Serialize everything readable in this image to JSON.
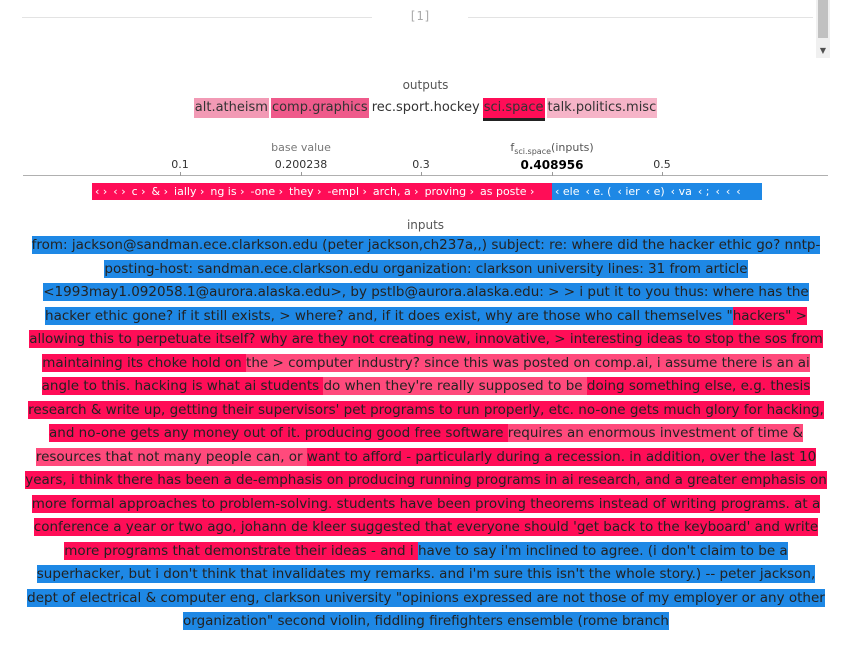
{
  "header": {
    "index_label": "[1]"
  },
  "outputs": {
    "title": "outputs",
    "items": [
      {
        "label": "alt.atheism",
        "color": "#f29ab5",
        "selected": false
      },
      {
        "label": "comp.graphics",
        "color": "#ef5a8b",
        "selected": false
      },
      {
        "label": "rec.sport.hockey",
        "color": "#ffffff",
        "selected": false
      },
      {
        "label": "sci.space",
        "color": "#ff0d57",
        "selected": true
      },
      {
        "label": "talk.politics.misc",
        "color": "#f6b4c8",
        "selected": false
      }
    ]
  },
  "force_plot": {
    "base_value_label": "base value",
    "base_value": "0.200238",
    "f_label_prefix": "f",
    "f_label_sub": "sci.space",
    "f_label_suffix": "(inputs)",
    "f_value": "0.408956",
    "ticks": [
      "0.1",
      "0.200238",
      "0.3",
      "0.408956",
      "0.5"
    ],
    "positive_segments": [
      "‹",
      "‹",
      "c",
      "&",
      "ially",
      "ng is",
      "-one",
      "they",
      "-empl",
      "arch, a",
      "proving",
      "as poste"
    ],
    "negative_segments": [
      "ele",
      "e. (",
      "ier",
      "e)",
      "va",
      ";",
      "",
      "",
      ""
    ],
    "colors": {
      "positive": "#ff0d57",
      "negative": "#1e88e5"
    }
  },
  "inputs": {
    "title": "inputs",
    "tokens": [
      {
        "t": "from: jackson@sandman.ece.clarkson.edu (peter jackson,ch237a,,) subject: re: where did the hacker ethic ",
        "c": "b"
      },
      {
        "t": "go? nntp-posting-host: sandman.ece.clarkson.edu organization: clarkson university lines: 31 from article ",
        "c": "b"
      },
      {
        "t": "<1993may1.092058.1@aurora.alaska.edu>, by pstlb@aurora.alaska.edu: > > i put it to you thus: where has the hacker ethic gone? if it still exists, > where? and, if it does exist, why are those who call themselves \"",
        "c": "b"
      },
      {
        "t": "hackers\" > allowing this to perpetuate itself? why are they not creating new, innovative, > interesting ideas to stop the sos from maintaining its choke hold on ",
        "c": "s"
      },
      {
        "t": "the > computer industry? since this was posted on comp.ai, i assume there is an ai ",
        "c": "m"
      },
      {
        "t": "angle to this. hacking is what ai students ",
        "c": "s"
      },
      {
        "t": "do when they're really supposed to be ",
        "c": "m"
      },
      {
        "t": "doing something else, e.g. thesis research & write up, getting their supervisors' pet programs to run ",
        "c": "s"
      },
      {
        "t": "properly, etc. no-one gets much glory for hacking, and no-one gets any money out of it. producing good free software ",
        "c": "s"
      },
      {
        "t": "requires an enormous investment of time & resources that not many people can, or ",
        "c": "m"
      },
      {
        "t": "want to afford - particularly during a recession. in addition, over the last 10 years, i think ",
        "c": "s"
      },
      {
        "t": "there has been a de-emphasis on producing running programs in ai research, and a greater emphasis on ",
        "c": "s"
      },
      {
        "t": "more formal approaches to problem-solving. students have been proving theorems instead of writing programs. at a conference a year or ",
        "c": "s"
      },
      {
        "t": "two ago, johann de kleer suggested that everyone should 'get back to the keyboard' and write more programs that demonstrate their ideas - and i ",
        "c": "s"
      },
      {
        "t": "have to say i'm inclined to agree. (i don't claim to be a superhacker, ",
        "c": "b"
      },
      {
        "t": "but i don't think that invalidates my remarks. and i'm sure this isn't the whole ",
        "c": "b"
      },
      {
        "t": "story.) -- peter jackson, dept of electrical & computer eng, clarkson university \"opinions expressed are not those of my employer or any other organization\" second violin, fiddling firefighters ensemble (rome branch",
        "c": "b"
      }
    ]
  }
}
